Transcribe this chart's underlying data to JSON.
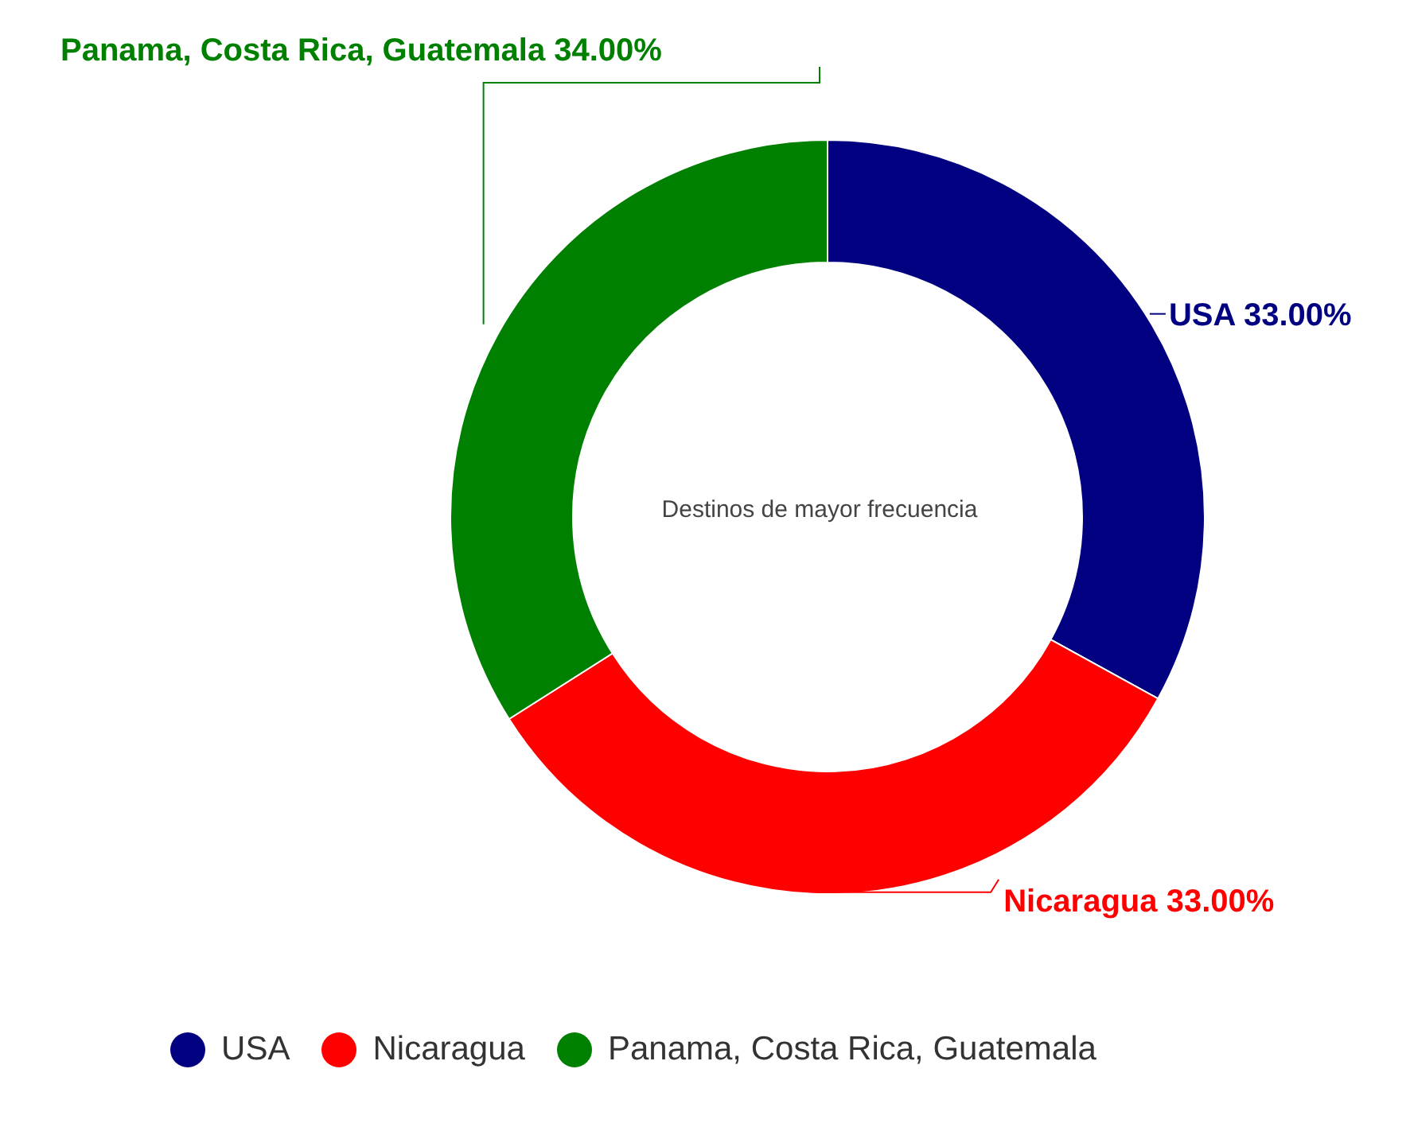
{
  "chart_data": {
    "type": "donut",
    "title": "Destinos de mayor frecuencia",
    "categories": [
      "USA",
      "Nicaragua",
      "Panama, Costa Rica, Guatemala"
    ],
    "values": [
      33,
      33,
      34
    ],
    "value_labels": [
      "33.00%",
      "33.00%",
      "34.00%"
    ],
    "colors": [
      "#000080",
      "#ff0000",
      "#008000"
    ],
    "legend": "bottom"
  }
}
